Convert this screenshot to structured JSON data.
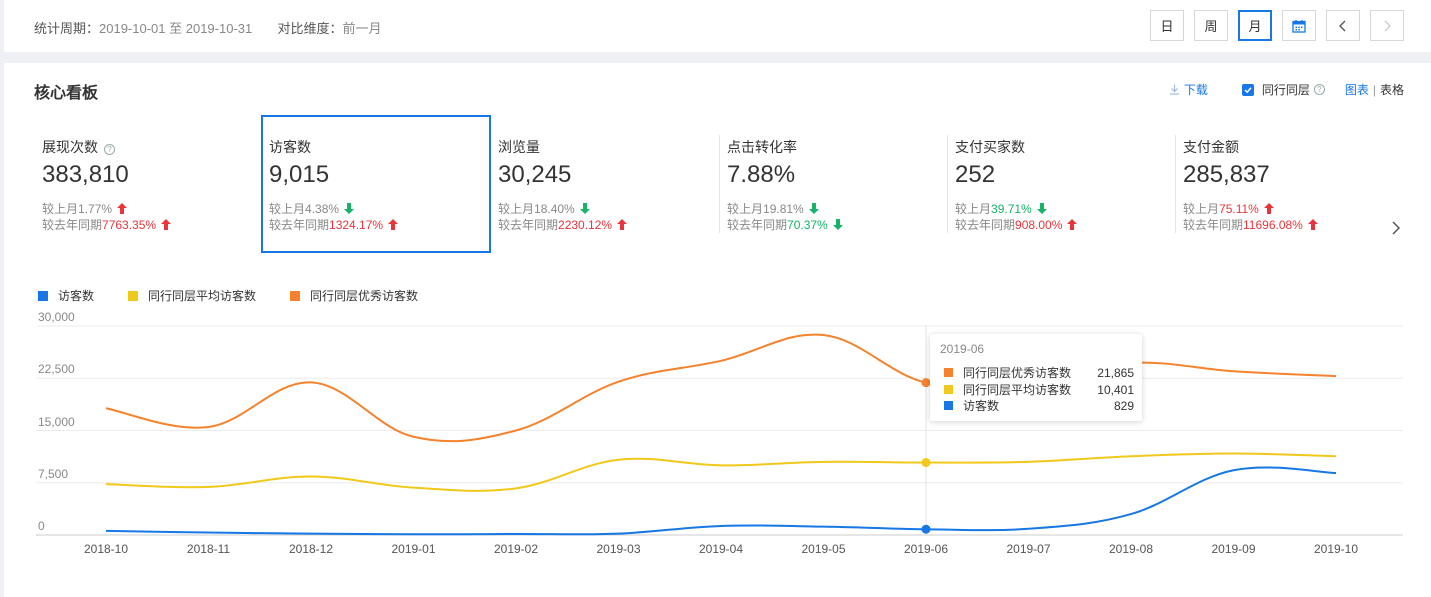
{
  "header": {
    "period_label": "统计周期：",
    "period_value": "2019-10-01 至 2019-10-31",
    "compare_label": "对比维度：",
    "compare_value": "前一月",
    "buttons": {
      "day": "日",
      "week": "周",
      "month": "月"
    }
  },
  "panel": {
    "title": "核心看板",
    "download": "下载",
    "peer_checkbox": "同行同层",
    "help": "?",
    "view_chart": "图表",
    "view_sep": "|",
    "view_table": "表格"
  },
  "metrics": [
    {
      "label": "展现次数",
      "value": "383,810",
      "mom_label": "较上月",
      "mom": "1.77%",
      "mom_dir": "up",
      "yoy_label": "较去年同期",
      "yoy": "7763.35%",
      "yoy_dir": "up",
      "help": "?"
    },
    {
      "label": "访客数",
      "value": "9,015",
      "mom_label": "较上月",
      "mom": "4.38%",
      "mom_dir": "down",
      "yoy_label": "较去年同期",
      "yoy": "1324.17%",
      "yoy_dir": "up"
    },
    {
      "label": "浏览量",
      "value": "30,245",
      "mom_label": "较上月",
      "mom": "18.40%",
      "mom_dir": "down",
      "yoy_label": "较去年同期",
      "yoy": "2230.12%",
      "yoy_dir": "up"
    },
    {
      "label": "点击转化率",
      "value": "7.88%",
      "mom_label": "较上月",
      "mom": "19.81%",
      "mom_dir": "down",
      "yoy_label": "较去年同期",
      "yoy": "70.37%",
      "yoy_dir": "down"
    },
    {
      "label": "支付买家数",
      "value": "252",
      "mom_label": "较上月",
      "mom": "39.71%",
      "mom_dir": "down",
      "yoy_label": "较去年同期",
      "yoy": "908.00%",
      "yoy_dir": "up"
    },
    {
      "label": "支付金额",
      "value": "285,837",
      "mom_label": "较上月",
      "mom": "75.11%",
      "mom_dir": "up",
      "yoy_label": "较去年同期",
      "yoy": "11696.08%",
      "yoy_dir": "up"
    }
  ],
  "colors": {
    "accent": "#1677e5",
    "up": "#e8343d",
    "down": "#16b36a"
  },
  "chart_data": {
    "type": "line",
    "categories": [
      "2018-10",
      "2018-11",
      "2018-12",
      "2019-01",
      "2019-02",
      "2019-03",
      "2019-04",
      "2019-05",
      "2019-06",
      "2019-07",
      "2019-08",
      "2019-09",
      "2019-10"
    ],
    "ylim": [
      0,
      30000
    ],
    "yticks": [
      "30,000",
      "22,500",
      "15,000",
      "7,500",
      "0"
    ],
    "series": [
      {
        "name": "访客数",
        "color": "#1677e5",
        "values": [
          600,
          350,
          200,
          100,
          150,
          200,
          1300,
          1200,
          829,
          900,
          3000,
          9300,
          8900
        ]
      },
      {
        "name": "同行同层平均访客数",
        "color": "#f0c91c",
        "values": [
          7300,
          6900,
          8400,
          6800,
          6700,
          10800,
          10000,
          10500,
          10401,
          10500,
          11300,
          11700,
          11300
        ]
      },
      {
        "name": "同行同层优秀访客数",
        "color": "#f5822d",
        "values": [
          18200,
          15500,
          21900,
          14100,
          15000,
          22000,
          25000,
          28700,
          21865,
          21800,
          24700,
          23500,
          22800
        ]
      }
    ],
    "tooltip": {
      "title": "2019-06",
      "rows": [
        {
          "name": "同行同层优秀访客数",
          "value": "21,865",
          "color": "#f5822d"
        },
        {
          "name": "同行同层平均访客数",
          "value": "10,401",
          "color": "#f0c91c"
        },
        {
          "name": "访客数",
          "value": "829",
          "color": "#1677e5"
        }
      ]
    }
  }
}
